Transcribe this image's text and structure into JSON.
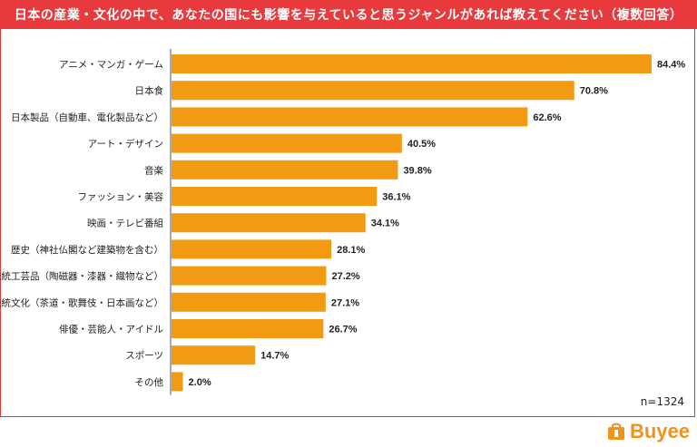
{
  "header": {
    "title": "日本の産業・文化の中で、あなたの国にも影響を与えていると思うジャンルがあれば教えてください（複数回答）"
  },
  "sample": "n=1324",
  "brand": {
    "name": "Buyee"
  },
  "colors": {
    "bar": "#f29a12",
    "header": "#e8393c",
    "brand": "#f0921c"
  },
  "chart_data": {
    "type": "bar",
    "orientation": "horizontal",
    "title": "日本の産業・文化の中で、あなたの国にも影響を与えていると思うジャンルがあれば教えてください（複数回答）",
    "xlabel": "",
    "ylabel": "",
    "xlim": [
      0,
      86
    ],
    "unit": "%",
    "categories": [
      "アニメ・マンガ・ゲーム",
      "日本食",
      "日本製品（自動車、電化製品など）",
      "アート・デザイン",
      "音楽",
      "ファッション・美容",
      "映画・テレビ番組",
      "歴史（神社仏閣など建築物を含む）",
      "伝統工芸品（陶磁器・漆器・織物など）",
      "伝統文化（茶道・歌舞伎・日本画など）",
      "俳優・芸能人・アイドル",
      "スポーツ",
      "その他"
    ],
    "values": [
      84.4,
      70.8,
      62.6,
      40.5,
      39.8,
      36.1,
      34.1,
      28.1,
      27.2,
      27.1,
      26.7,
      14.7,
      2.0
    ],
    "labels": [
      "84.4%",
      "70.8%",
      "62.6%",
      "40.5%",
      "39.8%",
      "36.1%",
      "34.1%",
      "28.1%",
      "27.2%",
      "27.1%",
      "26.7%",
      "14.7%",
      "2.0%"
    ]
  }
}
